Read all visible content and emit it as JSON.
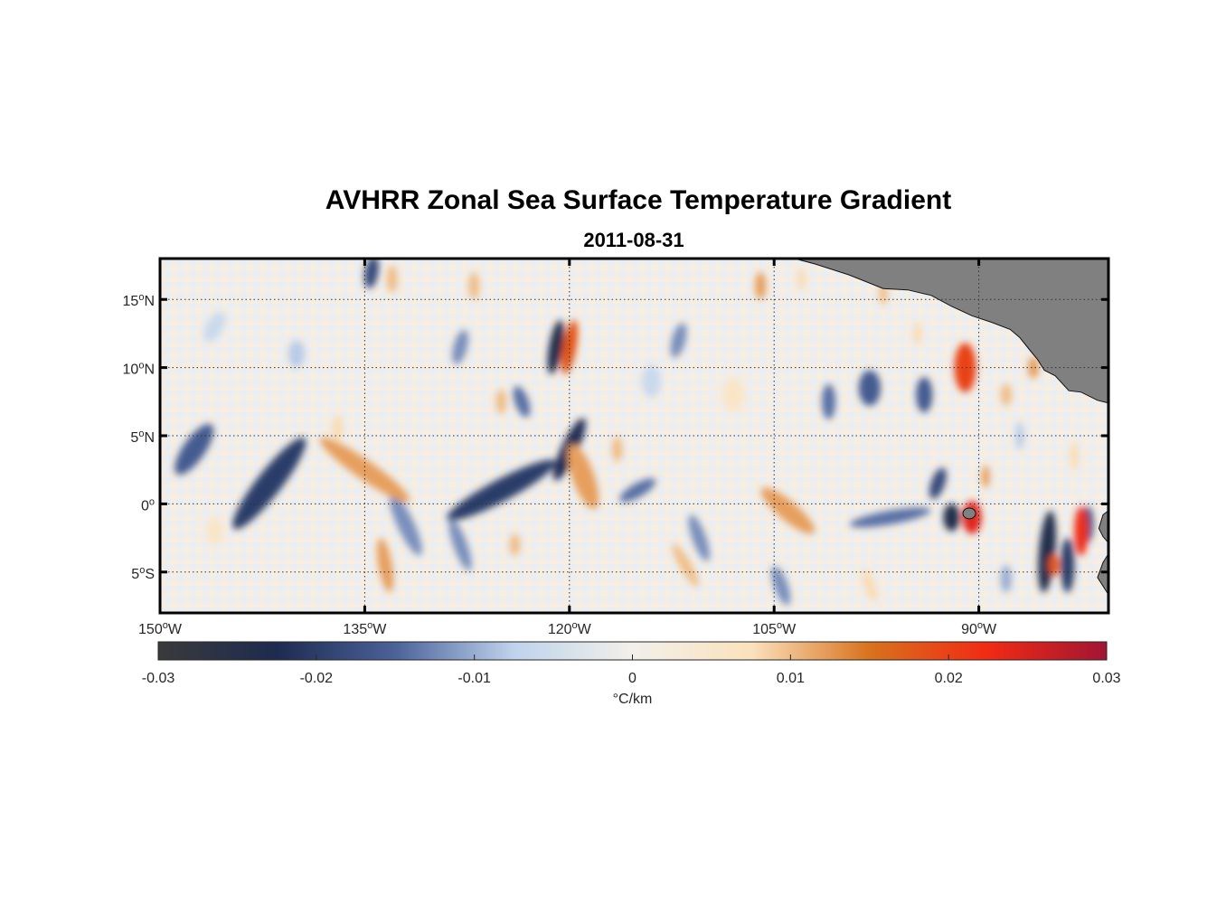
{
  "title": "AVHRR Zonal Sea Surface Temperature Gradient",
  "subtitle": "2011-08-31",
  "chart_data": {
    "type": "heatmap",
    "map_extent": {
      "lon": [
        -150,
        -80.5
      ],
      "lat": [
        -8,
        18
      ]
    },
    "grid": true,
    "x_ticks": [
      {
        "value": -150,
        "deg": "150",
        "hemi": "W"
      },
      {
        "value": -135,
        "deg": "135",
        "hemi": "W"
      },
      {
        "value": -120,
        "deg": "120",
        "hemi": "W"
      },
      {
        "value": -105,
        "deg": "105",
        "hemi": "W"
      },
      {
        "value": -90,
        "deg": "90",
        "hemi": "W"
      }
    ],
    "y_ticks": [
      {
        "value": 15,
        "deg": "15",
        "hemi": "N"
      },
      {
        "value": 10,
        "deg": "10",
        "hemi": "N"
      },
      {
        "value": 5,
        "deg": "5",
        "hemi": "N"
      },
      {
        "value": 0,
        "deg": "0",
        "hemi": ""
      },
      {
        "value": -5,
        "deg": "5",
        "hemi": "S"
      }
    ],
    "land_color": "#808080",
    "colorbar": {
      "range": [
        -0.03,
        0.03
      ],
      "ticks": [
        -0.03,
        -0.02,
        -0.01,
        0,
        0.01,
        0.02,
        0.03
      ],
      "tick_labels": [
        "-0.03",
        "-0.02",
        "-0.01",
        "0",
        "0.01",
        "0.02",
        "0.03"
      ],
      "label": "°C/km",
      "colors": [
        "#3a3a3a",
        "#1d2b50",
        "#4b629a",
        "#bfd3ec",
        "#f2f0ea",
        "#fbe2bd",
        "#d8721d",
        "#f12a14",
        "#a11534"
      ]
    },
    "features": [
      {
        "lon": -142.0,
        "lat": 1.5,
        "value": -0.02,
        "rx": 0.9,
        "ry": 4.2,
        "rot": 38
      },
      {
        "lon": -147.5,
        "lat": 4.0,
        "value": -0.016,
        "rx": 0.8,
        "ry": 2.2,
        "rot": 35
      },
      {
        "lon": -125.0,
        "lat": 1.0,
        "value": -0.02,
        "rx": 0.8,
        "ry": 4.5,
        "rot": 62
      },
      {
        "lon": -120.0,
        "lat": 4.0,
        "value": -0.022,
        "rx": 0.6,
        "ry": 2.5,
        "rot": 25
      },
      {
        "lon": -121.0,
        "lat": 11.5,
        "value": -0.024,
        "rx": 0.5,
        "ry": 2.0,
        "rot": 10
      },
      {
        "lon": -123.5,
        "lat": 7.5,
        "value": -0.014,
        "rx": 0.5,
        "ry": 1.2,
        "rot": -20
      },
      {
        "lon": -128.0,
        "lat": 11.5,
        "value": -0.012,
        "rx": 0.5,
        "ry": 1.3,
        "rot": 15
      },
      {
        "lon": -134.5,
        "lat": 17.0,
        "value": -0.018,
        "rx": 0.5,
        "ry": 1.2,
        "rot": 10
      },
      {
        "lon": -132.0,
        "lat": -1.5,
        "value": -0.012,
        "rx": 0.6,
        "ry": 2.5,
        "rot": -25
      },
      {
        "lon": -128.0,
        "lat": -3.0,
        "value": -0.012,
        "rx": 0.5,
        "ry": 2.0,
        "rot": -20
      },
      {
        "lon": -115.0,
        "lat": 1.0,
        "value": -0.014,
        "rx": 0.5,
        "ry": 1.5,
        "rot": 60
      },
      {
        "lon": -112.0,
        "lat": 12.0,
        "value": -0.012,
        "rx": 0.5,
        "ry": 1.3,
        "rot": 15
      },
      {
        "lon": -110.5,
        "lat": -2.5,
        "value": -0.012,
        "rx": 0.5,
        "ry": 1.8,
        "rot": -20
      },
      {
        "lon": -104.5,
        "lat": -6.0,
        "value": -0.012,
        "rx": 0.5,
        "ry": 1.5,
        "rot": -20
      },
      {
        "lon": -96.5,
        "lat": -1.0,
        "value": -0.014,
        "rx": 0.5,
        "ry": 3.0,
        "rot": 80
      },
      {
        "lon": -98.0,
        "lat": 8.5,
        "value": -0.016,
        "rx": 0.8,
        "ry": 1.3,
        "rot": 0
      },
      {
        "lon": -94.0,
        "lat": 8.0,
        "value": -0.016,
        "rx": 0.6,
        "ry": 1.3,
        "rot": 0
      },
      {
        "lon": -93.0,
        "lat": 1.5,
        "value": -0.018,
        "rx": 0.5,
        "ry": 1.2,
        "rot": 20
      },
      {
        "lon": -92.0,
        "lat": -1.0,
        "value": -0.024,
        "rx": 0.6,
        "ry": 1.0,
        "rot": 0
      },
      {
        "lon": -101.0,
        "lat": 7.5,
        "value": -0.014,
        "rx": 0.5,
        "ry": 1.3,
        "rot": 0
      },
      {
        "lon": -85.0,
        "lat": -3.5,
        "value": -0.024,
        "rx": 0.6,
        "ry": 3.0,
        "rot": 5
      },
      {
        "lon": -83.5,
        "lat": -4.5,
        "value": -0.02,
        "rx": 0.5,
        "ry": 2.0,
        "rot": 0
      },
      {
        "lon": -82.0,
        "lat": -1.5,
        "value": -0.018,
        "rx": 0.4,
        "ry": 1.3,
        "rot": 0
      },
      {
        "lon": -135.0,
        "lat": 2.5,
        "value": 0.012,
        "rx": 0.7,
        "ry": 4.0,
        "rot": -55
      },
      {
        "lon": -133.5,
        "lat": -4.5,
        "value": 0.012,
        "rx": 0.5,
        "ry": 2.0,
        "rot": -10
      },
      {
        "lon": -137.0,
        "lat": 5.5,
        "value": 0.008,
        "rx": 0.4,
        "ry": 1.0,
        "rot": 0
      },
      {
        "lon": -119.0,
        "lat": 2.0,
        "value": 0.012,
        "rx": 0.8,
        "ry": 2.5,
        "rot": -20
      },
      {
        "lon": -120.0,
        "lat": 11.5,
        "value": 0.018,
        "rx": 0.5,
        "ry": 2.0,
        "rot": 10
      },
      {
        "lon": -116.5,
        "lat": 4.0,
        "value": 0.01,
        "rx": 0.4,
        "ry": 0.9,
        "rot": 0
      },
      {
        "lon": -125.0,
        "lat": 7.5,
        "value": 0.01,
        "rx": 0.4,
        "ry": 0.9,
        "rot": 0
      },
      {
        "lon": -133.0,
        "lat": 16.5,
        "value": 0.01,
        "rx": 0.4,
        "ry": 1.0,
        "rot": 0
      },
      {
        "lon": -127.0,
        "lat": 16.0,
        "value": 0.01,
        "rx": 0.4,
        "ry": 1.0,
        "rot": 0
      },
      {
        "lon": -124.0,
        "lat": -3.0,
        "value": 0.01,
        "rx": 0.4,
        "ry": 0.8,
        "rot": 0
      },
      {
        "lon": -104.0,
        "lat": -0.5,
        "value": 0.012,
        "rx": 0.7,
        "ry": 2.5,
        "rot": -50
      },
      {
        "lon": -111.5,
        "lat": -4.5,
        "value": 0.01,
        "rx": 0.4,
        "ry": 1.8,
        "rot": -30
      },
      {
        "lon": -91.0,
        "lat": 10.0,
        "value": 0.02,
        "rx": 0.8,
        "ry": 1.8,
        "rot": 0
      },
      {
        "lon": -90.5,
        "lat": -1.0,
        "value": 0.024,
        "rx": 0.7,
        "ry": 1.2,
        "rot": 0
      },
      {
        "lon": -89.5,
        "lat": 2.0,
        "value": 0.012,
        "rx": 0.3,
        "ry": 0.8,
        "rot": 0
      },
      {
        "lon": -82.5,
        "lat": -2.0,
        "value": 0.022,
        "rx": 0.5,
        "ry": 1.8,
        "rot": 0
      },
      {
        "lon": -84.5,
        "lat": -4.5,
        "value": 0.018,
        "rx": 0.4,
        "ry": 0.8,
        "rot": 0
      },
      {
        "lon": -86.0,
        "lat": 10.0,
        "value": 0.012,
        "rx": 0.4,
        "ry": 0.8,
        "rot": 0
      },
      {
        "lon": -106.0,
        "lat": 16.0,
        "value": 0.012,
        "rx": 0.4,
        "ry": 1.0,
        "rot": 0
      },
      {
        "lon": -103.0,
        "lat": 16.5,
        "value": 0.008,
        "rx": 0.3,
        "ry": 0.8,
        "rot": 0
      },
      {
        "lon": -97.0,
        "lat": 15.5,
        "value": 0.01,
        "rx": 0.3,
        "ry": 0.9,
        "rot": 0
      },
      {
        "lon": -94.5,
        "lat": 12.5,
        "value": 0.008,
        "rx": 0.3,
        "ry": 0.8,
        "rot": 0
      },
      {
        "lon": -88.0,
        "lat": 8.0,
        "value": 0.01,
        "rx": 0.4,
        "ry": 0.8,
        "rot": 0
      },
      {
        "lon": -83.0,
        "lat": 3.5,
        "value": 0.008,
        "rx": 0.3,
        "ry": 1.0,
        "rot": 0
      },
      {
        "lon": -146.0,
        "lat": -2.0,
        "value": 0.006,
        "rx": 0.6,
        "ry": 1.0,
        "rot": 0
      },
      {
        "lon": -140.0,
        "lat": 11.0,
        "value": -0.008,
        "rx": 0.6,
        "ry": 1.0,
        "rot": 0
      },
      {
        "lon": -146.0,
        "lat": 13.0,
        "value": -0.006,
        "rx": 0.6,
        "ry": 1.2,
        "rot": 30
      },
      {
        "lon": -108.0,
        "lat": 8.0,
        "value": 0.006,
        "rx": 0.8,
        "ry": 1.2,
        "rot": 0
      },
      {
        "lon": -114.0,
        "lat": 9.0,
        "value": -0.006,
        "rx": 0.7,
        "ry": 1.2,
        "rot": 0
      },
      {
        "lon": -98.0,
        "lat": -6.0,
        "value": 0.008,
        "rx": 0.4,
        "ry": 1.2,
        "rot": -20
      },
      {
        "lon": -88.0,
        "lat": -5.5,
        "value": -0.01,
        "rx": 0.4,
        "ry": 1.0,
        "rot": 0
      },
      {
        "lon": -87.0,
        "lat": 5.0,
        "value": -0.008,
        "rx": 0.3,
        "ry": 1.0,
        "rot": 0
      }
    ]
  }
}
